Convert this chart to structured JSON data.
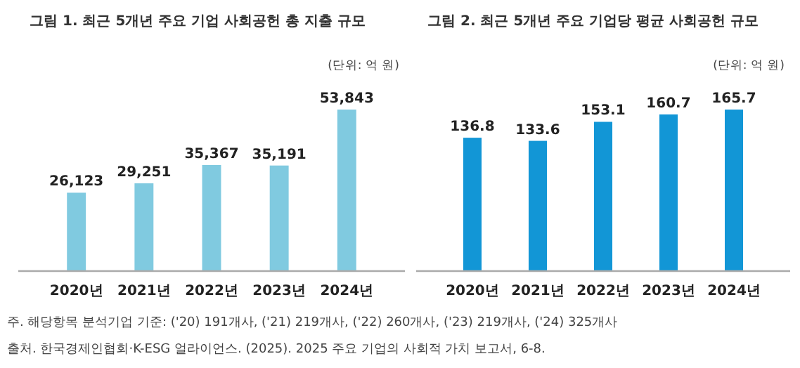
{
  "chart_data": [
    {
      "type": "bar",
      "title": "그림 1. 최근 5개년 주요 기업 사회공헌 총 지출 규모",
      "subtitle": "(단위: 억 원)",
      "categories": [
        "2020년",
        "2021년",
        "2022년",
        "2023년",
        "2024년"
      ],
      "values": [
        26123,
        29251,
        35367,
        35191,
        53843
      ],
      "color": "#80cae0",
      "value_labels": [
        "26,123",
        "29,251",
        "35,367",
        "35,191",
        "53,843"
      ],
      "tick_labels": "x",
      "annotations": [
        "주. 해당항목 분석기업 기준: ('20) 191개사, ('21) 219개사, ('22) 260개사, ('23) 219개사, ('24) 325개사",
        "출처. 한국경제인협회·K-ESG 얼라이언스. (2025). 2025 주요 기업의 사회적 가치 보고서, 6-8."
      ]
    },
    {
      "type": "bar",
      "title": "그림 2. 최근 5개년 주요 기업당 평균 사회공헌 규모",
      "subtitle": "(단위: 억 원)",
      "categories": [
        "2020년",
        "2021년",
        "2022년",
        "2023년",
        "2024년"
      ],
      "values": [
        136.8,
        133.6,
        153.1,
        160.7,
        165.7
      ],
      "color": "#1296d6",
      "data_labels": true,
      "tick_labels": "x"
    }
  ]
}
